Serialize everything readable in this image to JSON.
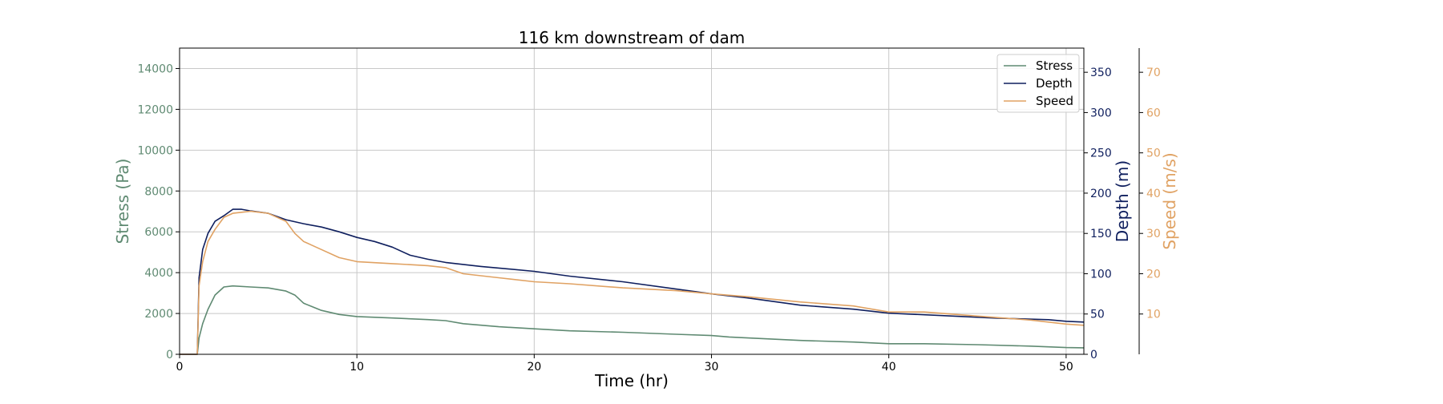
{
  "colors": {
    "stress": "#5f8a72",
    "depth": "#0f1f5e",
    "speed": "#e0a263",
    "grid": "#c8c8c8",
    "axis": "#000000"
  },
  "chart_data": {
    "type": "line",
    "title": "116 km downstream of dam",
    "xlabel": "Time (hr)",
    "xlim": [
      0,
      51
    ],
    "xticks": [
      0,
      10,
      20,
      30,
      40,
      50
    ],
    "grid": true,
    "legend_position": "top-right",
    "axes": {
      "stress": {
        "label": "Stress (Pa)",
        "side": "left",
        "ylim": [
          0,
          15000
        ],
        "ticks": [
          0,
          2000,
          4000,
          6000,
          8000,
          10000,
          12000,
          14000
        ]
      },
      "depth": {
        "label": "Depth (m)",
        "side": "right",
        "ylim": [
          0,
          380
        ],
        "ticks": [
          0,
          50,
          100,
          150,
          200,
          250,
          300,
          350
        ]
      },
      "speed": {
        "label": "Speed (m/s)",
        "side": "right-outer",
        "ylim": [
          0,
          76
        ],
        "ticks": [
          10,
          20,
          30,
          40,
          50,
          60,
          70
        ]
      }
    },
    "series": [
      {
        "name": "Stress",
        "axis": "stress",
        "x": [
          0,
          1.0,
          1.1,
          1.3,
          1.6,
          2.0,
          2.5,
          3.0,
          4.0,
          5.0,
          6.0,
          6.5,
          7.0,
          8.0,
          9.0,
          10.0,
          12.0,
          14.0,
          15.0,
          16.0,
          18.0,
          20.0,
          22.0,
          25.0,
          28.0,
          30.0,
          31.0,
          33.0,
          35.0,
          38.0,
          40.0,
          42.0,
          45.0,
          48.0,
          50.0,
          51.0
        ],
        "y": [
          0,
          0,
          800,
          1500,
          2200,
          2900,
          3300,
          3350,
          3300,
          3250,
          3100,
          2900,
          2500,
          2150,
          1950,
          1850,
          1780,
          1700,
          1650,
          1500,
          1350,
          1250,
          1150,
          1080,
          980,
          920,
          850,
          760,
          680,
          600,
          520,
          520,
          470,
          400,
          330,
          320
        ]
      },
      {
        "name": "Depth",
        "axis": "depth",
        "x": [
          0,
          1.0,
          1.1,
          1.3,
          1.6,
          2.0,
          2.5,
          3.0,
          3.5,
          4.0,
          5.0,
          6.0,
          7.0,
          8.0,
          9.0,
          10.0,
          11.0,
          12.0,
          13.0,
          14.0,
          15.0,
          17.0,
          20.0,
          22.0,
          25.0,
          28.0,
          30.0,
          32.0,
          35.0,
          38.0,
          40.0,
          43.0,
          46.0,
          49.0,
          50.0,
          51.0
        ],
        "y": [
          0,
          0,
          95,
          130,
          150,
          165,
          172,
          180,
          180,
          178,
          175,
          167,
          162,
          158,
          152,
          145,
          140,
          133,
          123,
          118,
          114,
          109,
          103,
          97,
          90,
          81,
          75,
          70,
          61,
          56,
          51,
          48,
          45,
          43,
          41,
          40
        ]
      },
      {
        "name": "Speed",
        "axis": "speed",
        "x": [
          0,
          1.0,
          1.1,
          1.3,
          1.6,
          2.0,
          2.5,
          3.0,
          4.0,
          5.0,
          6.0,
          6.5,
          7.0,
          7.5,
          8.0,
          9.0,
          10.0,
          12.0,
          14.0,
          15.0,
          16.0,
          18.0,
          20.0,
          22.0,
          25.0,
          28.0,
          30.0,
          32.0,
          35.0,
          38.0,
          40.0,
          42.0,
          45.0,
          48.0,
          50.0,
          51.0
        ],
        "y": [
          0,
          0,
          17,
          23,
          28,
          31,
          34,
          35,
          35.5,
          35,
          33,
          30,
          28,
          27,
          26,
          24,
          23,
          22.5,
          22,
          21.5,
          20,
          19,
          18,
          17.5,
          16.5,
          15.8,
          15,
          14.3,
          13,
          12,
          10.5,
          10.5,
          9.5,
          8.5,
          7.5,
          7.2
        ]
      }
    ]
  }
}
